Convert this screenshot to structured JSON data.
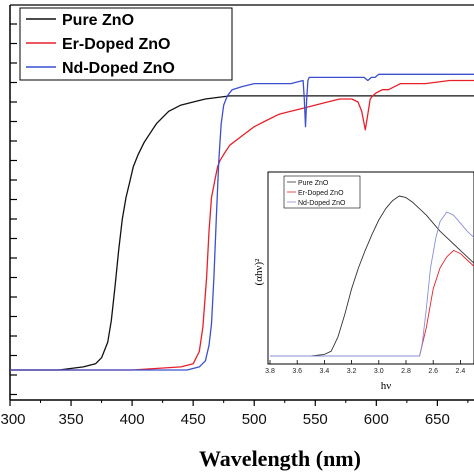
{
  "chart_data": [
    {
      "type": "line",
      "xlabel": "Wavelength (nm)",
      "ylabel": "",
      "xlim": [
        300,
        680
      ],
      "x_ticks": [
        300,
        350,
        400,
        450,
        500,
        550,
        600,
        650
      ],
      "grid": false,
      "legend_position": "top-left",
      "series": [
        {
          "name": "Pure ZnO",
          "color": "#111111",
          "x": [
            300,
            340,
            360,
            370,
            375,
            380,
            383,
            386,
            389,
            392,
            395,
            398,
            401,
            405,
            410,
            415,
            420,
            425,
            430,
            440,
            450,
            460,
            480,
            500,
            520,
            550,
            600,
            640,
            680
          ],
          "y": [
            0.0,
            0.0,
            0.01,
            0.02,
            0.04,
            0.09,
            0.16,
            0.27,
            0.39,
            0.49,
            0.56,
            0.61,
            0.66,
            0.7,
            0.74,
            0.77,
            0.8,
            0.82,
            0.84,
            0.86,
            0.87,
            0.88,
            0.89,
            0.89,
            0.89,
            0.89,
            0.89,
            0.89,
            0.89
          ]
        },
        {
          "name": "Er-Doped ZnO",
          "color": "#e8202a",
          "x": [
            300,
            350,
            400,
            440,
            450,
            455,
            458,
            461,
            463,
            465,
            468,
            470,
            472,
            475,
            480,
            490,
            500,
            510,
            520,
            530,
            540,
            550,
            560,
            570,
            580,
            585,
            588,
            591,
            593,
            595,
            597,
            600,
            605,
            610,
            615,
            620,
            640,
            660,
            680
          ],
          "y": [
            0.0,
            0.0,
            0.0,
            0.01,
            0.02,
            0.06,
            0.14,
            0.3,
            0.45,
            0.56,
            0.62,
            0.66,
            0.68,
            0.7,
            0.73,
            0.76,
            0.79,
            0.81,
            0.83,
            0.84,
            0.85,
            0.86,
            0.87,
            0.88,
            0.88,
            0.87,
            0.84,
            0.78,
            0.83,
            0.88,
            0.89,
            0.9,
            0.91,
            0.91,
            0.92,
            0.93,
            0.93,
            0.94,
            0.94
          ]
        },
        {
          "name": "Nd-Doped ZnO",
          "color": "#3c4fd0",
          "x": [
            300,
            350,
            400,
            445,
            455,
            460,
            463,
            465,
            467,
            469,
            471,
            473,
            475,
            478,
            482,
            490,
            500,
            510,
            520,
            530,
            540,
            541,
            542,
            543,
            544,
            545,
            546,
            550,
            560,
            570,
            580,
            590,
            593,
            596,
            599,
            602,
            610,
            620,
            640,
            660,
            680
          ],
          "y": [
            0.0,
            0.0,
            0.0,
            0.0,
            0.01,
            0.03,
            0.08,
            0.15,
            0.3,
            0.5,
            0.68,
            0.8,
            0.86,
            0.89,
            0.91,
            0.92,
            0.93,
            0.93,
            0.93,
            0.93,
            0.94,
            0.88,
            0.79,
            0.88,
            0.94,
            0.95,
            0.95,
            0.95,
            0.95,
            0.95,
            0.95,
            0.95,
            0.94,
            0.95,
            0.95,
            0.96,
            0.96,
            0.96,
            0.96,
            0.96,
            0.96
          ]
        }
      ]
    },
    {
      "type": "line",
      "xlabel": "hν",
      "ylabel": "(αhν)²",
      "xlim": [
        3.8,
        2.3
      ],
      "x_ticks": [
        3.8,
        3.6,
        3.4,
        3.2,
        3.0,
        2.8,
        2.6,
        2.4
      ],
      "grid": false,
      "legend_position": "top-left",
      "series": [
        {
          "name": "Pure ZnO",
          "color": "#333333",
          "x": [
            3.8,
            3.5,
            3.4,
            3.35,
            3.3,
            3.25,
            3.2,
            3.15,
            3.1,
            3.05,
            3.0,
            2.95,
            2.9,
            2.85,
            2.8,
            2.75,
            2.7,
            2.65,
            2.6,
            2.55,
            2.5,
            2.45,
            2.4,
            2.35,
            2.3
          ],
          "y": [
            0.0,
            0.0,
            0.01,
            0.03,
            0.12,
            0.26,
            0.42,
            0.55,
            0.66,
            0.76,
            0.85,
            0.92,
            0.97,
            1.0,
            0.99,
            0.96,
            0.92,
            0.88,
            0.83,
            0.78,
            0.74,
            0.7,
            0.66,
            0.62,
            0.58
          ]
        },
        {
          "name": "Er-Doped ZnO",
          "color": "#e8202a",
          "x": [
            3.8,
            3.0,
            2.7,
            2.65,
            2.6,
            2.55,
            2.5,
            2.45,
            2.4,
            2.35,
            2.3
          ],
          "y": [
            0.0,
            0.0,
            0.0,
            0.18,
            0.42,
            0.55,
            0.62,
            0.66,
            0.64,
            0.6,
            0.56
          ]
        },
        {
          "name": "Nd-Doped ZnO",
          "color": "#8a8fd8",
          "x": [
            3.8,
            3.0,
            2.7,
            2.68,
            2.65,
            2.62,
            2.58,
            2.55,
            2.5,
            2.45,
            2.4,
            2.35,
            2.3
          ],
          "y": [
            0.0,
            0.0,
            0.0,
            0.08,
            0.3,
            0.55,
            0.74,
            0.84,
            0.9,
            0.88,
            0.83,
            0.78,
            0.74
          ]
        }
      ]
    }
  ]
}
